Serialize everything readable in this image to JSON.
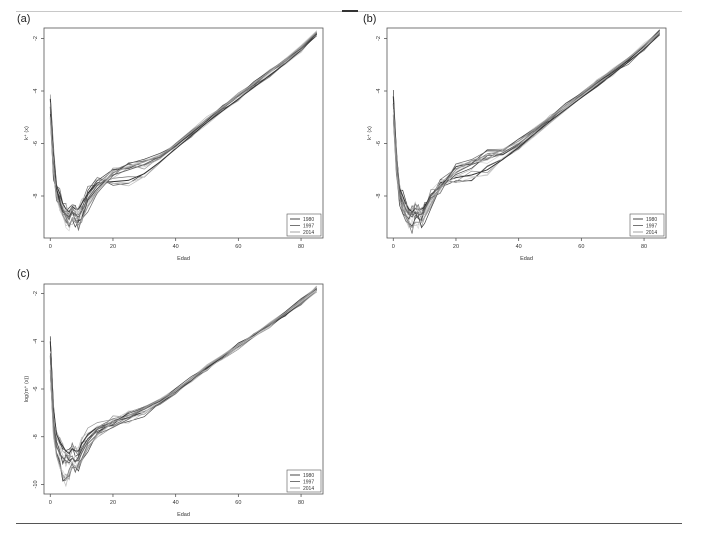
{
  "figure": {
    "panels": [
      {
        "label": "(a)"
      },
      {
        "label": "(b)"
      },
      {
        "label": "(c)"
      }
    ]
  },
  "chart_data": [
    {
      "type": "line",
      "panel": "(a)",
      "xlabel": "Edad",
      "ylabel": "k⁺ (x)",
      "xlim": [
        -2,
        87
      ],
      "ylim": [
        -9.6,
        -1.6
      ],
      "xticks": [
        0,
        20,
        40,
        60,
        80
      ],
      "yticks": [
        -2,
        -4,
        -6,
        -8
      ],
      "grid": false,
      "legend": {
        "placement": "bottom-right",
        "entries": [
          "1980",
          "1997",
          "2014"
        ]
      },
      "series": [
        {
          "name": "1980",
          "color": "#333333",
          "x": [
            0,
            1,
            2,
            3,
            4,
            5,
            6,
            7,
            8,
            9,
            10,
            12,
            15,
            20,
            25,
            30,
            35,
            40,
            45,
            50,
            55,
            60,
            65,
            70,
            75,
            80,
            85
          ],
          "y": [
            -4.3,
            -6.3,
            -7.6,
            -7.9,
            -8.3,
            -8.5,
            -8.6,
            -8.4,
            -8.5,
            -8.5,
            -8.3,
            -7.9,
            -7.5,
            -7.45,
            -7.4,
            -7.15,
            -6.7,
            -6.2,
            -5.7,
            -5.2,
            -4.75,
            -4.3,
            -3.85,
            -3.4,
            -2.95,
            -2.45,
            -1.85
          ]
        },
        {
          "name": "1997",
          "color": "#666666",
          "x": [
            0,
            1,
            2,
            3,
            4,
            5,
            6,
            7,
            8,
            9,
            10,
            12,
            15,
            20,
            25,
            30,
            35,
            40,
            45,
            50,
            55,
            60,
            65,
            70,
            75,
            80,
            85
          ],
          "y": [
            -4.6,
            -6.8,
            -7.9,
            -8.2,
            -8.5,
            -8.7,
            -8.9,
            -8.6,
            -8.7,
            -8.8,
            -8.6,
            -8.1,
            -7.6,
            -7.2,
            -7.0,
            -6.8,
            -6.5,
            -6.1,
            -5.6,
            -5.1,
            -4.65,
            -4.2,
            -3.75,
            -3.3,
            -2.85,
            -2.35,
            -1.8
          ]
        },
        {
          "name": "2014",
          "color": "#999999",
          "x": [
            0,
            1,
            2,
            3,
            4,
            5,
            6,
            7,
            8,
            9,
            10,
            12,
            15,
            20,
            25,
            30,
            35,
            40,
            45,
            50,
            55,
            60,
            65,
            70,
            75,
            80,
            85
          ],
          "y": [
            -5.0,
            -7.1,
            -8.0,
            -8.4,
            -8.7,
            -9.0,
            -9.1,
            -8.9,
            -9.0,
            -9.1,
            -8.9,
            -8.4,
            -7.8,
            -7.1,
            -6.9,
            -6.7,
            -6.45,
            -6.05,
            -5.55,
            -5.05,
            -4.6,
            -4.15,
            -3.7,
            -3.25,
            -2.8,
            -2.3,
            -1.75
          ]
        }
      ]
    },
    {
      "type": "line",
      "panel": "(b)",
      "xlabel": "Edad",
      "ylabel": "k⁺ (x)",
      "xlim": [
        -2,
        87
      ],
      "ylim": [
        -9.6,
        -1.6
      ],
      "xticks": [
        0,
        20,
        40,
        60,
        80
      ],
      "yticks": [
        -2,
        -4,
        -6,
        -8
      ],
      "grid": false,
      "legend": {
        "placement": "bottom-right",
        "entries": [
          "1980",
          "1997",
          "2014"
        ]
      },
      "series": [
        {
          "name": "1980",
          "color": "#333333",
          "x": [
            0,
            1,
            2,
            3,
            4,
            5,
            6,
            7,
            8,
            9,
            10,
            12,
            15,
            20,
            25,
            30,
            35,
            40,
            45,
            50,
            55,
            60,
            65,
            70,
            75,
            80,
            85
          ],
          "y": [
            -4.2,
            -6.4,
            -7.7,
            -8.0,
            -8.3,
            -8.5,
            -8.6,
            -8.5,
            -8.5,
            -8.5,
            -8.4,
            -8.0,
            -7.5,
            -7.3,
            -7.2,
            -7.0,
            -6.6,
            -6.15,
            -5.65,
            -5.15,
            -4.7,
            -4.25,
            -3.8,
            -3.35,
            -2.9,
            -2.4,
            -1.85
          ]
        },
        {
          "name": "1997",
          "color": "#666666",
          "x": [
            0,
            1,
            2,
            3,
            4,
            5,
            6,
            7,
            8,
            9,
            10,
            12,
            15,
            20,
            25,
            30,
            35,
            40,
            45,
            50,
            55,
            60,
            65,
            70,
            75,
            80,
            85
          ],
          "y": [
            -4.5,
            -6.6,
            -7.9,
            -8.2,
            -8.5,
            -8.7,
            -8.8,
            -8.6,
            -8.7,
            -8.7,
            -8.5,
            -8.0,
            -7.6,
            -7.1,
            -6.8,
            -6.6,
            -6.35,
            -6.0,
            -5.55,
            -5.05,
            -4.6,
            -4.15,
            -3.7,
            -3.25,
            -2.8,
            -2.3,
            -1.8
          ]
        },
        {
          "name": "2014",
          "color": "#999999",
          "x": [
            0,
            1,
            2,
            3,
            4,
            5,
            6,
            7,
            8,
            9,
            10,
            12,
            15,
            20,
            25,
            30,
            35,
            40,
            45,
            50,
            55,
            60,
            65,
            70,
            75,
            80,
            85
          ],
          "y": [
            -4.9,
            -7.0,
            -8.1,
            -8.5,
            -8.8,
            -9.1,
            -9.2,
            -9.0,
            -9.0,
            -9.0,
            -8.8,
            -8.3,
            -7.7,
            -7.0,
            -6.65,
            -6.45,
            -6.25,
            -5.9,
            -5.45,
            -5.0,
            -4.55,
            -4.1,
            -3.65,
            -3.2,
            -2.75,
            -2.25,
            -1.75
          ]
        }
      ]
    },
    {
      "type": "line",
      "panel": "(c)",
      "xlabel": "Edad",
      "ylabel": "log(m⁺ (x))",
      "xlim": [
        -2,
        87
      ],
      "ylim": [
        -10.4,
        -1.6
      ],
      "xticks": [
        0,
        20,
        40,
        60,
        80
      ],
      "yticks": [
        -2,
        -4,
        -6,
        -8,
        -10
      ],
      "grid": false,
      "legend": {
        "placement": "bottom-right",
        "entries": [
          "1980",
          "1997",
          "2014"
        ]
      },
      "series": [
        {
          "name": "1980",
          "color": "#333333",
          "x": [
            0,
            1,
            2,
            3,
            4,
            5,
            6,
            7,
            8,
            9,
            10,
            12,
            15,
            20,
            25,
            30,
            35,
            40,
            45,
            50,
            55,
            60,
            65,
            70,
            75,
            80,
            85
          ],
          "y": [
            -4.0,
            -6.8,
            -7.9,
            -8.2,
            -8.4,
            -8.6,
            -8.7,
            -8.5,
            -8.6,
            -8.6,
            -8.3,
            -7.9,
            -7.6,
            -7.4,
            -7.2,
            -6.95,
            -6.6,
            -6.15,
            -5.65,
            -5.15,
            -4.7,
            -4.25,
            -3.8,
            -3.35,
            -2.9,
            -2.4,
            -1.85
          ]
        },
        {
          "name": "1997",
          "color": "#666666",
          "x": [
            0,
            1,
            2,
            3,
            4,
            5,
            6,
            7,
            8,
            9,
            10,
            12,
            15,
            20,
            25,
            30,
            35,
            40,
            45,
            50,
            55,
            60,
            65,
            70,
            75,
            80,
            85
          ],
          "y": [
            -4.6,
            -7.3,
            -8.4,
            -8.7,
            -8.9,
            -9.0,
            -9.1,
            -8.9,
            -9.0,
            -9.0,
            -8.7,
            -8.2,
            -7.7,
            -7.35,
            -7.1,
            -6.85,
            -6.5,
            -6.1,
            -5.6,
            -5.1,
            -4.65,
            -4.2,
            -3.75,
            -3.3,
            -2.85,
            -2.35,
            -1.8
          ]
        },
        {
          "name": "2014",
          "color": "#999999",
          "x": [
            0,
            1,
            2,
            3,
            4,
            5,
            6,
            7,
            8,
            9,
            10,
            12,
            15,
            20,
            25,
            30,
            35,
            40,
            45,
            50,
            55,
            60,
            65,
            70,
            75,
            80,
            85
          ],
          "y": [
            -5.2,
            -7.8,
            -8.8,
            -9.2,
            -9.6,
            -9.8,
            -9.6,
            -9.3,
            -9.3,
            -9.3,
            -9.0,
            -8.5,
            -7.9,
            -7.4,
            -7.1,
            -6.8,
            -6.45,
            -6.05,
            -5.55,
            -5.05,
            -4.6,
            -4.15,
            -3.7,
            -3.25,
            -2.8,
            -2.3,
            -1.75
          ]
        }
      ]
    }
  ]
}
